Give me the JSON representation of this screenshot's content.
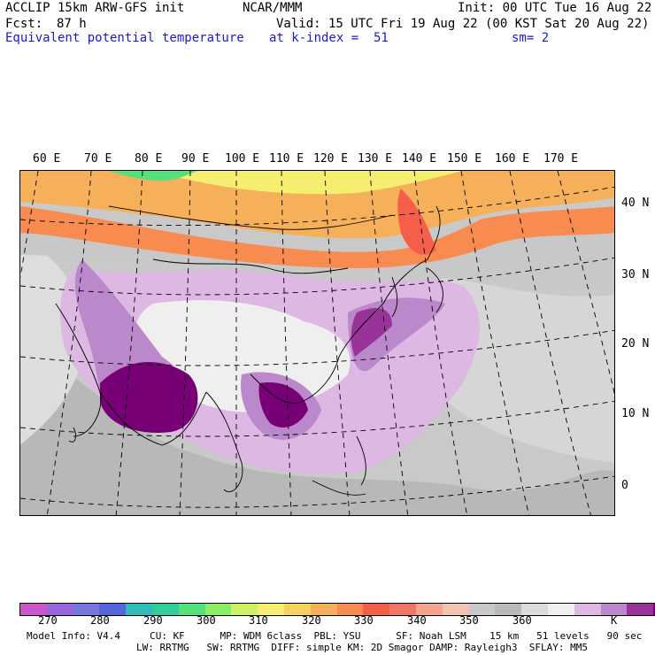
{
  "header": {
    "model": "ACCLIP 15km ARW-GFS init",
    "center": "NCAR/MMM",
    "init": "Init: 00 UTC Tue 16 Aug 22",
    "fcst_label": "Fcst:",
    "fcst_value": "87 h",
    "valid": "Valid: 15 UTC Fri 19 Aug 22 (00 KST Sat 20 Aug 22)",
    "field": "Equivalent potential temperature",
    "level": "at k-index =  51",
    "smooth": "sm= 2"
  },
  "map": {
    "lon_labels": [
      "60 E",
      "70 E",
      "80 E",
      "90 E",
      "100 E",
      "110 E",
      "120 E",
      "130 E",
      "140 E",
      "150 E",
      "160 E",
      "170 E"
    ],
    "lat_labels": [
      "40 N",
      "30 N",
      "20 N",
      "10 N",
      "0"
    ]
  },
  "colorbar": {
    "colors": [
      "#cc55cc",
      "#9966dd",
      "#7777dd",
      "#5566dd",
      "#33bbbb",
      "#33cc99",
      "#55e07a",
      "#88ee66",
      "#ccf066",
      "#f5ee70",
      "#f5d25e",
      "#f7b05a",
      "#f78b50",
      "#f55f4a",
      "#f07565",
      "#f5a490",
      "#f2c3b0",
      "#c8c8c8",
      "#bababa",
      "#dcdcdc",
      "#efefef",
      "#ddb8e2",
      "#bb88cc",
      "#993399",
      "#770077"
    ],
    "tick_labels": [
      "270",
      "280",
      "290",
      "300",
      "310",
      "320",
      "330",
      "340",
      "350",
      "360"
    ],
    "unit": "K"
  },
  "model_info": {
    "line1": "Model Info: V4.4     CU: KF      MP: WDM 6class  PBL: YSU      SF: Noah LSM    15 km   51 levels   90 sec",
    "line2": "LW: RRTMG   SW: RRTMG  DIFF: simple KM: 2D Smagor DAMP: Rayleigh3  SFLAY: MM5"
  }
}
